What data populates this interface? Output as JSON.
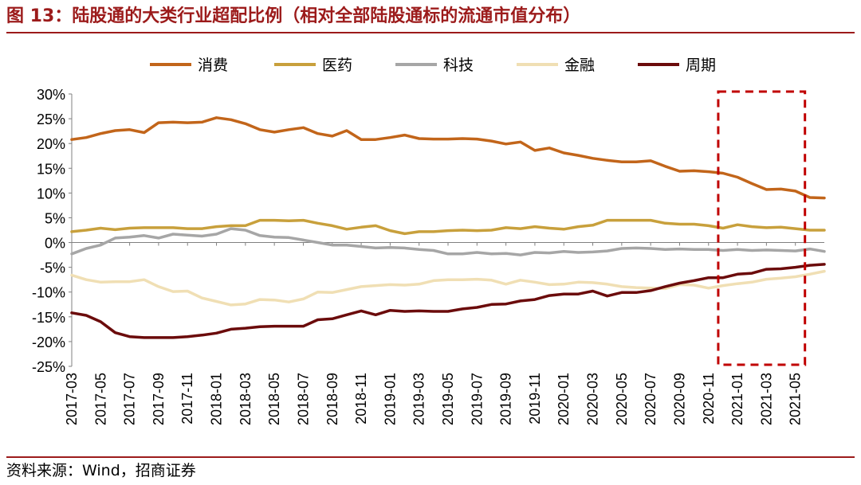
{
  "header": {
    "title": "图 13：陆股通的大类行业超配比例（相对全部陆股通标的流通市值分布）"
  },
  "footer": {
    "source": "资料来源：Wind，招商证券"
  },
  "colors": {
    "brand": "#9c1b1b",
    "consumer": "#c2651a",
    "medical": "#c8a03c",
    "tech": "#a6a6a6",
    "finance": "#f0dfb4",
    "cyclical": "#6b0b0b",
    "highlight_box": "#c00000"
  },
  "chart_data": {
    "type": "line",
    "ylim": [
      -25,
      30
    ],
    "yticks": [
      "30%",
      "25%",
      "20%",
      "15%",
      "10%",
      "5%",
      "0%",
      "-5%",
      "-10%",
      "-15%",
      "-20%",
      "-25%"
    ],
    "xticks": [
      "2017-03",
      "2017-05",
      "2017-07",
      "2017-09",
      "2017-11",
      "2018-01",
      "2018-03",
      "2018-05",
      "2018-07",
      "2018-09",
      "2018-11",
      "2019-01",
      "2019-03",
      "2019-05",
      "2019-07",
      "2019-09",
      "2019-11",
      "2020-01",
      "2020-03",
      "2020-05",
      "2020-07",
      "2020-09",
      "2020-11",
      "2021-01",
      "2021-03",
      "2021-05"
    ],
    "x_start": "2017-03",
    "x_end": "2021-05",
    "legend_position": "top",
    "highlight": [
      "2020-12",
      "2021-05"
    ],
    "series": [
      {
        "name": "消费",
        "color": "#c2651a",
        "values": [
          20.8,
          21.2,
          22.0,
          22.6,
          22.8,
          22.2,
          24.2,
          24.3,
          24.2,
          24.3,
          25.2,
          24.8,
          24.0,
          22.8,
          22.3,
          22.8,
          23.2,
          22.0,
          21.5,
          22.6,
          20.8,
          20.8,
          21.2,
          21.7,
          21.0,
          20.9,
          20.9,
          21.0,
          20.9,
          20.5,
          19.9,
          20.3,
          18.6,
          19.1,
          18.1,
          17.6,
          17.0,
          16.6,
          16.3,
          16.3,
          16.5,
          15.4,
          14.4,
          14.5,
          14.3,
          14.0,
          13.2,
          11.9,
          10.7,
          10.8,
          10.4,
          9.1,
          9.0
        ]
      },
      {
        "name": "医药",
        "color": "#c8a03c",
        "values": [
          2.2,
          2.5,
          2.9,
          2.6,
          2.9,
          3.0,
          3.0,
          3.0,
          2.8,
          2.8,
          3.2,
          3.4,
          3.4,
          4.5,
          4.5,
          4.4,
          4.5,
          3.9,
          3.4,
          2.7,
          3.1,
          3.4,
          2.4,
          1.8,
          2.2,
          2.2,
          2.4,
          2.5,
          2.4,
          2.5,
          3.0,
          2.8,
          3.2,
          2.9,
          2.7,
          3.2,
          3.5,
          4.5,
          4.5,
          4.5,
          4.5,
          3.9,
          3.7,
          3.7,
          3.4,
          2.9,
          3.6,
          3.2,
          3.0,
          3.1,
          2.8,
          2.5,
          2.5
        ]
      },
      {
        "name": "科技",
        "color": "#a6a6a6",
        "values": [
          -2.3,
          -1.2,
          -0.5,
          0.9,
          1.1,
          1.4,
          0.9,
          1.7,
          1.5,
          1.3,
          1.7,
          2.8,
          2.5,
          1.4,
          1.1,
          1.0,
          0.5,
          0.0,
          -0.5,
          -0.5,
          -0.8,
          -1.1,
          -1.0,
          -1.1,
          -1.4,
          -1.6,
          -2.3,
          -2.3,
          -2.0,
          -2.3,
          -2.2,
          -2.5,
          -2.0,
          -2.1,
          -1.8,
          -2.0,
          -1.9,
          -1.7,
          -1.2,
          -1.1,
          -1.2,
          -1.4,
          -1.3,
          -1.4,
          -1.4,
          -1.6,
          -1.4,
          -1.6,
          -1.5,
          -1.6,
          -1.7,
          -1.3,
          -1.8
        ]
      },
      {
        "name": "金融",
        "color": "#f0dfb4",
        "values": [
          -6.6,
          -7.5,
          -8.0,
          -7.9,
          -7.9,
          -7.5,
          -8.9,
          -9.9,
          -9.8,
          -11.2,
          -11.9,
          -12.6,
          -12.4,
          -11.5,
          -11.6,
          -12.0,
          -11.4,
          -10.0,
          -10.1,
          -9.5,
          -8.9,
          -8.7,
          -8.5,
          -8.6,
          -8.4,
          -7.7,
          -7.5,
          -7.5,
          -7.4,
          -7.6,
          -8.4,
          -7.6,
          -8.0,
          -8.5,
          -8.4,
          -8.0,
          -8.1,
          -8.4,
          -8.9,
          -9.1,
          -9.2,
          -9.3,
          -8.5,
          -8.6,
          -9.2,
          -8.7,
          -8.3,
          -8.0,
          -7.4,
          -7.2,
          -6.9,
          -6.4,
          -5.8
        ]
      },
      {
        "name": "周期",
        "color": "#6b0b0b",
        "values": [
          -14.2,
          -14.7,
          -16.0,
          -18.2,
          -19.0,
          -19.2,
          -19.2,
          -19.2,
          -19.0,
          -18.7,
          -18.3,
          -17.5,
          -17.3,
          -17.0,
          -16.9,
          -16.9,
          -16.9,
          -15.6,
          -15.4,
          -14.6,
          -13.8,
          -14.6,
          -13.7,
          -13.9,
          -13.8,
          -13.9,
          -13.9,
          -13.4,
          -13.1,
          -12.5,
          -12.4,
          -11.8,
          -11.5,
          -10.7,
          -10.4,
          -10.4,
          -9.8,
          -10.8,
          -10.1,
          -10.1,
          -9.7,
          -8.9,
          -8.2,
          -7.7,
          -7.1,
          -7.1,
          -6.4,
          -6.2,
          -5.4,
          -5.3,
          -5.0,
          -4.6,
          -4.4
        ]
      }
    ]
  }
}
